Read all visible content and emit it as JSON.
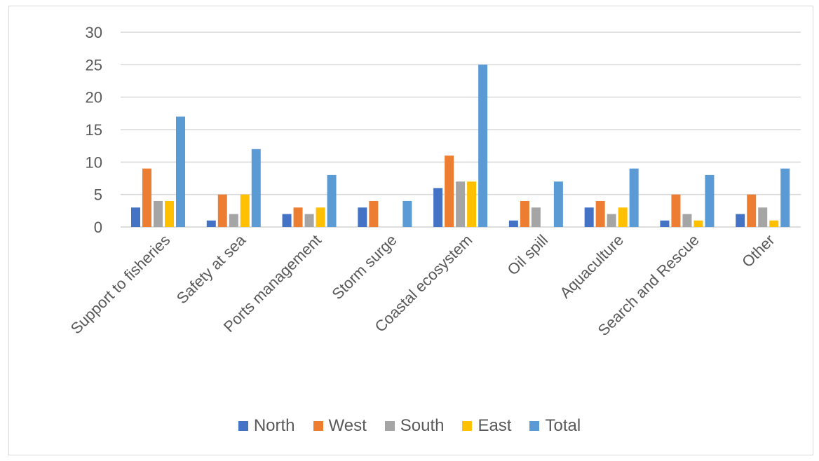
{
  "chart_data": {
    "type": "bar",
    "title": "",
    "xlabel": "",
    "ylabel": "",
    "ylim": [
      0,
      30
    ],
    "yticks": [
      0,
      5,
      10,
      15,
      20,
      25,
      30
    ],
    "grid": true,
    "legend_position": "bottom",
    "categories": [
      "Support to fisheries",
      "Safety at sea",
      "Ports management",
      "Storm surge",
      "Coastal ecosystem",
      "Oil spill",
      "Aquaculture",
      "Search and Rescue",
      "Other"
    ],
    "series": [
      {
        "name": "North",
        "color": "#4472c4",
        "values": [
          3,
          1,
          2,
          3,
          6,
          1,
          3,
          1,
          2
        ]
      },
      {
        "name": "West",
        "color": "#ed7d31",
        "values": [
          9,
          5,
          3,
          4,
          11,
          4,
          4,
          5,
          5
        ]
      },
      {
        "name": "South",
        "color": "#a5a5a5",
        "values": [
          4,
          2,
          2,
          0,
          7,
          3,
          2,
          2,
          3
        ]
      },
      {
        "name": "East",
        "color": "#ffc000",
        "values": [
          4,
          5,
          3,
          0,
          7,
          0,
          3,
          1,
          1
        ]
      },
      {
        "name": "Total",
        "color": "#5b9bd5",
        "values": [
          17,
          12,
          8,
          4,
          25,
          7,
          9,
          8,
          9
        ]
      }
    ]
  }
}
